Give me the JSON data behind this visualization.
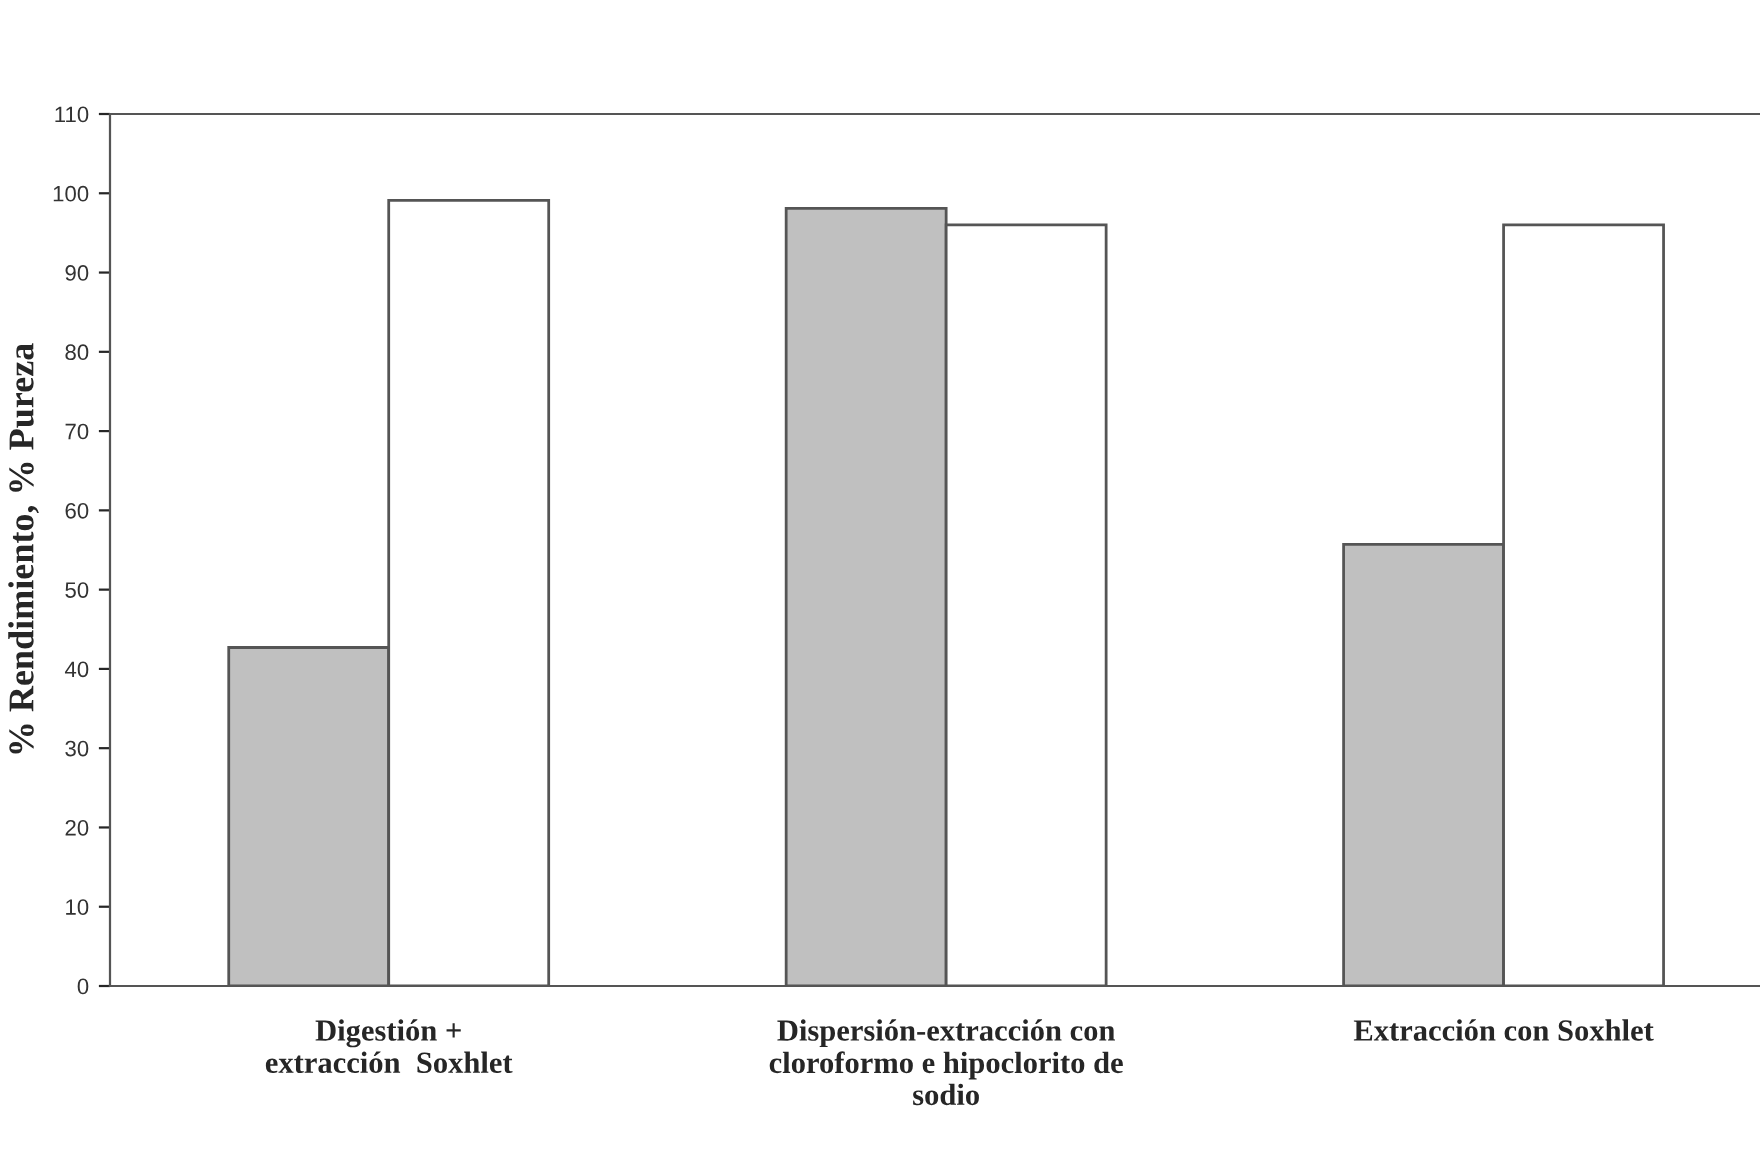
{
  "chart_data": {
    "type": "bar",
    "ylabel": "% Rendimiento, % Pureza",
    "categories": [
      "Digestión +\nextracción  Soxhlet",
      "Dispersión-extracción con\ncloroformo e hipoclorito de\nsodio",
      "Extracción con Soxhlet"
    ],
    "series": [
      {
        "color": "#c0c0c0",
        "values": [
          42.7,
          98.1,
          55.7
        ]
      },
      {
        "color": "#ffffff",
        "values": [
          99.1,
          96.0,
          96.0
        ]
      }
    ],
    "ylim": [
      0,
      110
    ],
    "yticks": [
      0,
      10,
      20,
      30,
      40,
      50,
      60,
      70,
      80,
      90,
      100,
      110
    ],
    "grid": false
  }
}
